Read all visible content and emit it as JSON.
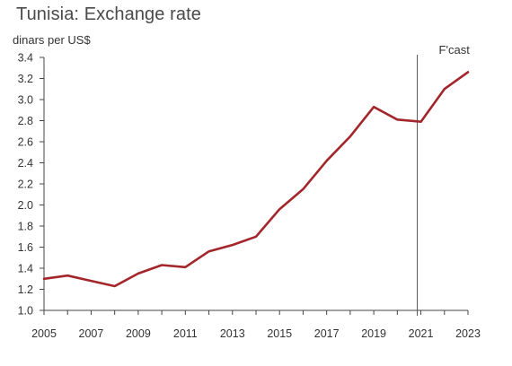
{
  "chart_data": {
    "type": "line",
    "title": "Tunisia: Exchange rate",
    "ylabel": "dinars per US$",
    "xlabel": "",
    "x": [
      2005,
      2006,
      2007,
      2008,
      2009,
      2010,
      2011,
      2012,
      2013,
      2014,
      2015,
      2016,
      2017,
      2018,
      2019,
      2020,
      2021,
      2022,
      2023
    ],
    "series": [
      {
        "values": [
          1.3,
          1.33,
          1.28,
          1.23,
          1.35,
          1.43,
          1.41,
          1.56,
          1.62,
          1.7,
          1.96,
          2.15,
          2.42,
          2.65,
          2.93,
          2.81,
          2.79,
          3.1,
          3.26
        ],
        "color": "#a3262b"
      }
    ],
    "xlim": [
      2005,
      2023
    ],
    "ylim": [
      1.0,
      3.4
    ],
    "xticks": [
      2005,
      2007,
      2009,
      2011,
      2013,
      2015,
      2017,
      2019,
      2021,
      2023
    ],
    "xtick_labels": [
      "2005",
      "2007",
      "2009",
      "2011",
      "2013",
      "2015",
      "2017",
      "2019",
      "2021",
      "2023"
    ],
    "yticks": [
      1.0,
      1.2,
      1.4,
      1.6,
      1.8,
      2.0,
      2.2,
      2.4,
      2.6,
      2.8,
      3.0,
      3.2,
      3.4
    ],
    "ytick_labels": [
      "1.0",
      "1.2",
      "1.4",
      "1.6",
      "1.8",
      "2.0",
      "2.2",
      "2.4",
      "2.6",
      "2.8",
      "3.0",
      "3.2",
      "3.4"
    ],
    "annotations": [
      {
        "text": "F'cast",
        "x": 2021
      }
    ],
    "grid": false,
    "legend": "none",
    "colors": {
      "line": "#a3262b",
      "axis": "#444444",
      "divider": "#555555"
    }
  }
}
